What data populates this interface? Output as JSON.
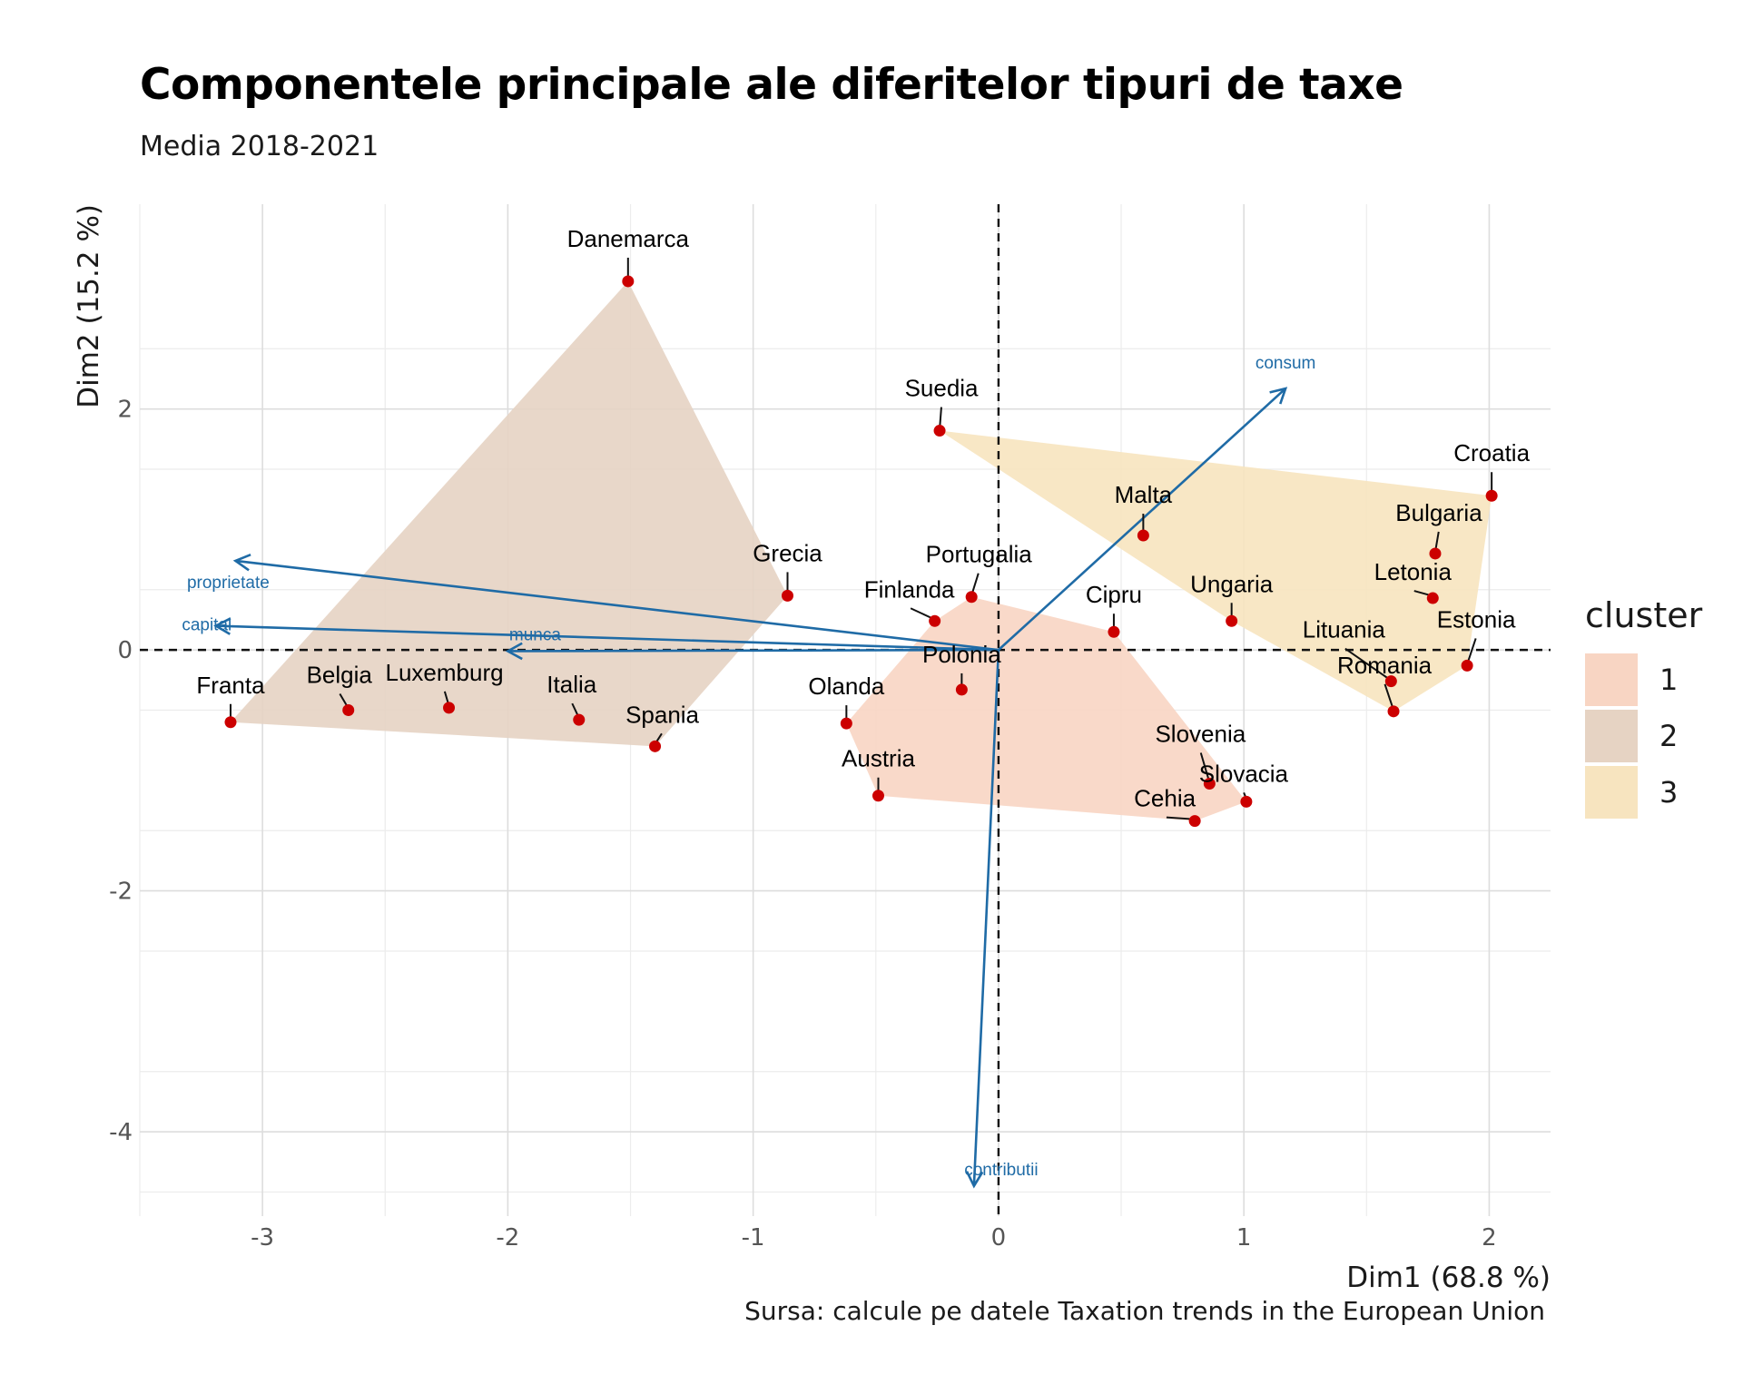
{
  "title": "Componentele principale ale diferitelor tipuri de taxe",
  "subtitle": "Media 2018-2021",
  "caption": "Sursa: calcule pe datele Taxation trends in the European Union",
  "legend": {
    "title": "cluster",
    "items": [
      {
        "label": "1",
        "color": "#F8D5C3"
      },
      {
        "label": "2",
        "color": "#E6D3C3"
      },
      {
        "label": "3",
        "color": "#F7E4BF"
      }
    ]
  },
  "chart_data": {
    "type": "scatter",
    "xlabel": "Dim1 (68.8 %)",
    "ylabel": "Dim2 (15.2 %)",
    "xlim": [
      -3.5,
      2.25
    ],
    "ylim": [
      -4.7,
      3.7
    ],
    "x_ticks": [
      -3,
      -2,
      -1,
      0,
      1,
      2
    ],
    "y_ticks": [
      -4,
      -2,
      0,
      2
    ],
    "grid": true,
    "legend_position": "right",
    "point_color": "#CC0000",
    "arrow_color": "#1F6BA6",
    "countries": [
      {
        "name": "Danemarca",
        "x": -1.51,
        "y": 3.06,
        "cluster": 2
      },
      {
        "name": "Suedia",
        "x": -0.24,
        "y": 1.82,
        "cluster": 3
      },
      {
        "name": "Croatia",
        "x": 2.01,
        "y": 1.28,
        "cluster": 3
      },
      {
        "name": "Malta",
        "x": 0.59,
        "y": 0.95,
        "cluster": 3
      },
      {
        "name": "Bulgaria",
        "x": 1.78,
        "y": 0.8,
        "cluster": 3
      },
      {
        "name": "Letonia",
        "x": 1.77,
        "y": 0.43,
        "cluster": 3
      },
      {
        "name": "Grecia",
        "x": -0.86,
        "y": 0.45,
        "cluster": 2
      },
      {
        "name": "Portugalia",
        "x": -0.11,
        "y": 0.44,
        "cluster": 1
      },
      {
        "name": "Finlanda",
        "x": -0.26,
        "y": 0.24,
        "cluster": 1
      },
      {
        "name": "Cipru",
        "x": 0.47,
        "y": 0.15,
        "cluster": 1
      },
      {
        "name": "Ungaria",
        "x": 0.95,
        "y": 0.24,
        "cluster": 3
      },
      {
        "name": "Lituania",
        "x": 1.6,
        "y": -0.26,
        "cluster": 3
      },
      {
        "name": "Estonia",
        "x": 1.91,
        "y": -0.13,
        "cluster": 3
      },
      {
        "name": "Romania",
        "x": 1.61,
        "y": -0.51,
        "cluster": 3
      },
      {
        "name": "Polonia",
        "x": -0.15,
        "y": -0.33,
        "cluster": 1
      },
      {
        "name": "Franta",
        "x": -3.13,
        "y": -0.6,
        "cluster": 2
      },
      {
        "name": "Belgia",
        "x": -2.65,
        "y": -0.5,
        "cluster": 2
      },
      {
        "name": "Luxemburg",
        "x": -2.24,
        "y": -0.48,
        "cluster": 2
      },
      {
        "name": "Italia",
        "x": -1.71,
        "y": -0.58,
        "cluster": 2
      },
      {
        "name": "Spania",
        "x": -1.4,
        "y": -0.8,
        "cluster": 2
      },
      {
        "name": "Olanda",
        "x": -0.62,
        "y": -0.61,
        "cluster": 1
      },
      {
        "name": "Austria",
        "x": -0.49,
        "y": -1.21,
        "cluster": 1
      },
      {
        "name": "Slovenia",
        "x": 0.86,
        "y": -1.11,
        "cluster": 1
      },
      {
        "name": "Slovacia",
        "x": 1.01,
        "y": -1.26,
        "cluster": 1
      },
      {
        "name": "Cehia",
        "x": 0.8,
        "y": -1.42,
        "cluster": 1
      }
    ],
    "variables": [
      {
        "name": "consum",
        "x": 1.17,
        "y": 2.17
      },
      {
        "name": "proprietate",
        "x": -3.11,
        "y": 0.74
      },
      {
        "name": "capital",
        "x": -3.19,
        "y": 0.2
      },
      {
        "name": "munca",
        "x": -2.0,
        "y": -0.01
      },
      {
        "name": "contributii",
        "x": -0.1,
        "y": -4.45
      }
    ]
  }
}
